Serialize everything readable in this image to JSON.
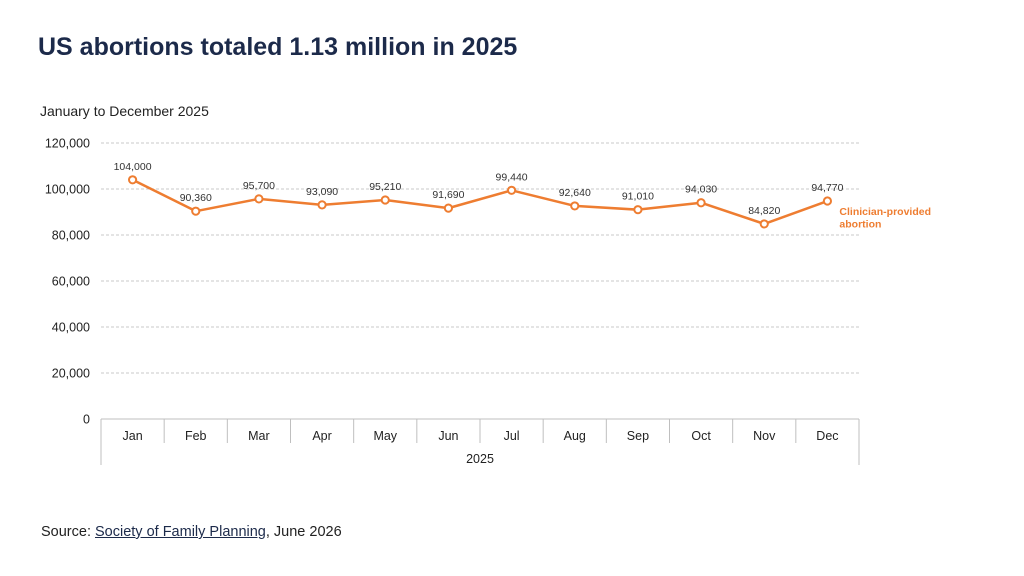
{
  "title": "US abortions totaled 1.13 million in 2025",
  "subtitle": "January to December 2025",
  "source": {
    "prefix": "Source: ",
    "link_text": "Society of Family Planning",
    "suffix": ", June 2026"
  },
  "colors": {
    "series": "#ee7d31",
    "grid": "#c8c8c8",
    "axis": "#bfbfbf",
    "title": "#1c2a4a"
  },
  "chart_data": {
    "type": "line",
    "title": "US abortions totaled 1.13 million in 2025",
    "subtitle": "January to December 2025",
    "xlabel": "2025",
    "ylabel": "",
    "categories": [
      "Jan",
      "Feb",
      "Mar",
      "Apr",
      "May",
      "Jun",
      "Jul",
      "Aug",
      "Sep",
      "Oct",
      "Nov",
      "Dec"
    ],
    "ylim": [
      0,
      120000
    ],
    "yticks": [
      0,
      20000,
      40000,
      60000,
      80000,
      100000,
      120000
    ],
    "ytick_labels": [
      "0",
      "20,000",
      "40,000",
      "60,000",
      "80,000",
      "100,000",
      "120,000"
    ],
    "grid": true,
    "series": [
      {
        "name": "Clinician-provided abortion",
        "values": [
          104000,
          90360,
          95700,
          93090,
          95210,
          91690,
          99440,
          92640,
          91010,
          94030,
          84820,
          94770
        ],
        "data_labels": [
          "104,000",
          "90,360",
          "95,700",
          "93,090",
          "95,210",
          "91,690",
          "99,440",
          "92,640",
          "91,010",
          "94,030",
          "84,820",
          "94,770"
        ],
        "label_lines": [
          "Clinician-provided",
          "abortion"
        ]
      }
    ]
  }
}
